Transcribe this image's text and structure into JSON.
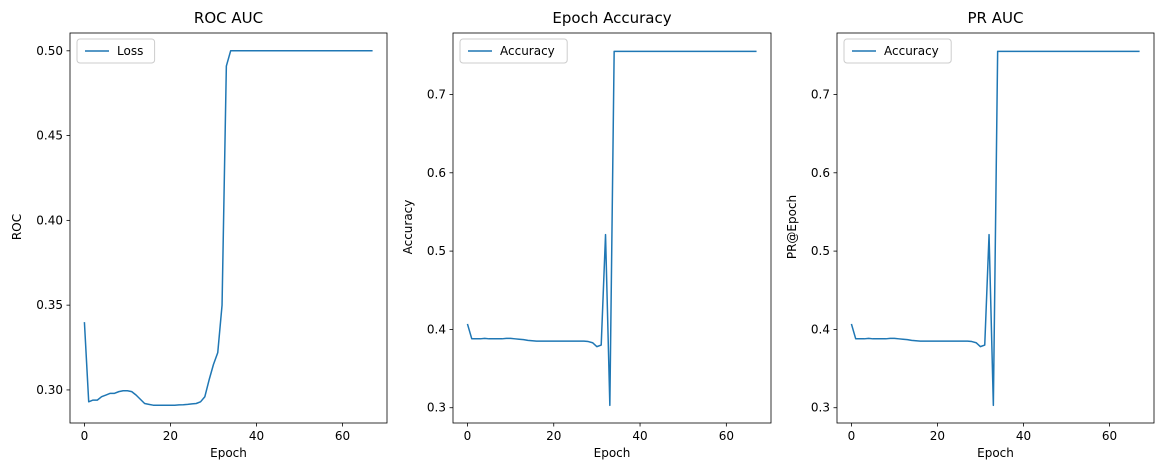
{
  "chart_data": [
    {
      "type": "line",
      "title": "ROC AUC",
      "xlabel": "Epoch",
      "ylabel": "ROC",
      "xlim": [
        -3.35,
        70.35
      ],
      "ylim": [
        0.2805,
        0.5105
      ],
      "xticks": [
        0,
        20,
        40,
        60
      ],
      "yticks": [
        0.3,
        0.35,
        0.4,
        0.45,
        0.5
      ],
      "ytick_labels": [
        "0.30",
        "0.35",
        "0.40",
        "0.45",
        "0.50"
      ],
      "legend_position": "upper-left",
      "color": "#1f77b4",
      "series": [
        {
          "name": "Loss",
          "x": [
            0,
            1,
            2,
            3,
            4,
            5,
            6,
            7,
            8,
            9,
            10,
            11,
            12,
            13,
            14,
            15,
            16,
            17,
            18,
            19,
            20,
            21,
            22,
            23,
            24,
            25,
            26,
            27,
            28,
            29,
            30,
            31,
            32,
            33,
            34,
            35,
            36,
            37,
            38,
            39,
            40,
            41,
            42,
            43,
            44,
            45,
            46,
            47,
            48,
            49,
            50,
            51,
            52,
            53,
            54,
            55,
            56,
            57,
            58,
            59,
            60,
            61,
            62,
            63,
            64,
            65,
            66,
            67
          ],
          "values": [
            0.34,
            0.293,
            0.294,
            0.294,
            0.296,
            0.297,
            0.298,
            0.298,
            0.299,
            0.2995,
            0.2995,
            0.299,
            0.297,
            0.2945,
            0.292,
            0.2915,
            0.291,
            0.291,
            0.291,
            0.291,
            0.291,
            0.291,
            0.2912,
            0.2913,
            0.2915,
            0.2918,
            0.292,
            0.293,
            0.296,
            0.306,
            0.315,
            0.322,
            0.35,
            0.491,
            0.5,
            0.5,
            0.5,
            0.5,
            0.5,
            0.5,
            0.5,
            0.5,
            0.5,
            0.5,
            0.5,
            0.5,
            0.5,
            0.5,
            0.5,
            0.5,
            0.5,
            0.5,
            0.5,
            0.5,
            0.5,
            0.5,
            0.5,
            0.5,
            0.5,
            0.5,
            0.5,
            0.5,
            0.5,
            0.5,
            0.5,
            0.5,
            0.5,
            0.5
          ]
        }
      ]
    },
    {
      "type": "line",
      "title": "Epoch Accuracy",
      "xlabel": "Epoch",
      "ylabel": "Accuracy",
      "xlim": [
        -3.35,
        70.35
      ],
      "ylim": [
        0.2805,
        0.7785
      ],
      "xticks": [
        0,
        20,
        40,
        60
      ],
      "yticks": [
        0.3,
        0.4,
        0.5,
        0.6,
        0.7
      ],
      "ytick_labels": [
        "0.3",
        "0.4",
        "0.5",
        "0.6",
        "0.7"
      ],
      "legend_position": "upper-left",
      "color": "#1f77b4",
      "series": [
        {
          "name": "Accuracy",
          "x": [
            0,
            1,
            2,
            3,
            4,
            5,
            6,
            7,
            8,
            9,
            10,
            11,
            12,
            13,
            14,
            15,
            16,
            17,
            18,
            19,
            20,
            21,
            22,
            23,
            24,
            25,
            26,
            27,
            28,
            29,
            30,
            31,
            32,
            33,
            34,
            35,
            36,
            37,
            38,
            39,
            40,
            41,
            42,
            43,
            44,
            45,
            46,
            47,
            48,
            49,
            50,
            51,
            52,
            53,
            54,
            55,
            56,
            57,
            58,
            59,
            60,
            61,
            62,
            63,
            64,
            65,
            66,
            67
          ],
          "values": [
            0.407,
            0.388,
            0.388,
            0.388,
            0.3885,
            0.388,
            0.388,
            0.388,
            0.388,
            0.3885,
            0.3885,
            0.388,
            0.3875,
            0.387,
            0.386,
            0.3855,
            0.385,
            0.385,
            0.385,
            0.385,
            0.385,
            0.385,
            0.385,
            0.385,
            0.385,
            0.385,
            0.385,
            0.385,
            0.3845,
            0.383,
            0.378,
            0.38,
            0.521,
            0.303,
            0.755,
            0.755,
            0.755,
            0.755,
            0.755,
            0.755,
            0.755,
            0.755,
            0.755,
            0.755,
            0.755,
            0.755,
            0.755,
            0.755,
            0.755,
            0.755,
            0.755,
            0.755,
            0.755,
            0.755,
            0.755,
            0.755,
            0.755,
            0.755,
            0.755,
            0.755,
            0.755,
            0.755,
            0.755,
            0.755,
            0.755,
            0.755,
            0.755,
            0.755
          ]
        }
      ]
    },
    {
      "type": "line",
      "title": "PR AUC",
      "xlabel": "Epoch",
      "ylabel": "PR@Epoch",
      "xlim": [
        -3.35,
        70.35
      ],
      "ylim": [
        0.2805,
        0.7785
      ],
      "xticks": [
        0,
        20,
        40,
        60
      ],
      "yticks": [
        0.3,
        0.4,
        0.5,
        0.6,
        0.7
      ],
      "ytick_labels": [
        "0.3",
        "0.4",
        "0.5",
        "0.6",
        "0.7"
      ],
      "legend_position": "upper-left",
      "color": "#1f77b4",
      "series": [
        {
          "name": "Accuracy",
          "x": [
            0,
            1,
            2,
            3,
            4,
            5,
            6,
            7,
            8,
            9,
            10,
            11,
            12,
            13,
            14,
            15,
            16,
            17,
            18,
            19,
            20,
            21,
            22,
            23,
            24,
            25,
            26,
            27,
            28,
            29,
            30,
            31,
            32,
            33,
            34,
            35,
            36,
            37,
            38,
            39,
            40,
            41,
            42,
            43,
            44,
            45,
            46,
            47,
            48,
            49,
            50,
            51,
            52,
            53,
            54,
            55,
            56,
            57,
            58,
            59,
            60,
            61,
            62,
            63,
            64,
            65,
            66,
            67
          ],
          "values": [
            0.407,
            0.388,
            0.388,
            0.388,
            0.3885,
            0.388,
            0.388,
            0.388,
            0.388,
            0.3885,
            0.3885,
            0.388,
            0.3875,
            0.387,
            0.386,
            0.3855,
            0.385,
            0.385,
            0.385,
            0.385,
            0.385,
            0.385,
            0.385,
            0.385,
            0.385,
            0.385,
            0.385,
            0.385,
            0.3845,
            0.383,
            0.378,
            0.38,
            0.521,
            0.303,
            0.755,
            0.755,
            0.755,
            0.755,
            0.755,
            0.755,
            0.755,
            0.755,
            0.755,
            0.755,
            0.755,
            0.755,
            0.755,
            0.755,
            0.755,
            0.755,
            0.755,
            0.755,
            0.755,
            0.755,
            0.755,
            0.755,
            0.755,
            0.755,
            0.755,
            0.755,
            0.755,
            0.755,
            0.755,
            0.755,
            0.755,
            0.755,
            0.755,
            0.755
          ]
        }
      ]
    }
  ]
}
